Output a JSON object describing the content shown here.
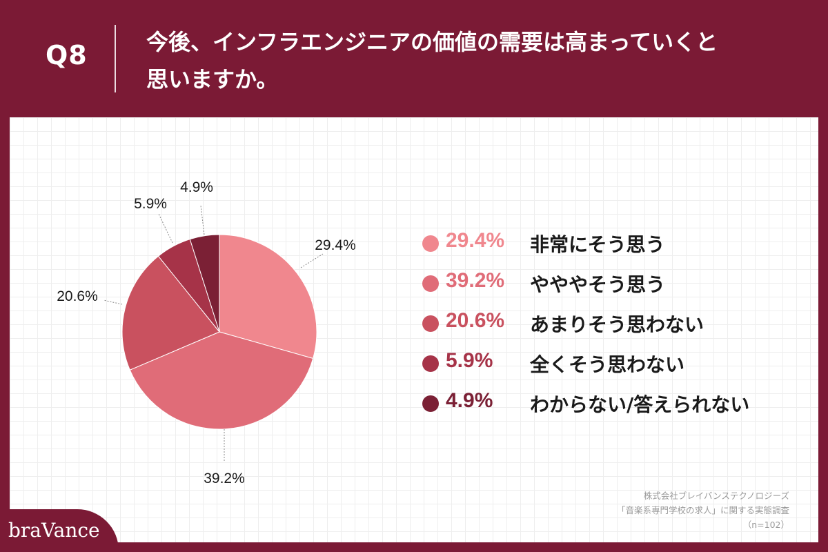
{
  "header": {
    "question_number": "Q8",
    "question_line1": "今後、インフラエンジニアの価値の需要は高まっていくと",
    "question_line2": "思いますか。"
  },
  "chart_data": {
    "type": "pie",
    "title": "",
    "categories": [
      "非常にそう思う",
      "やややそう思う",
      "あまりそう思わない",
      "全くそう思わない",
      "わからない/答えられない"
    ],
    "values": [
      29.4,
      39.2,
      20.6,
      5.9,
      4.9
    ],
    "value_labels": [
      "29.4%",
      "39.2%",
      "20.6%",
      "5.9%",
      "4.9%"
    ],
    "colors": [
      "#f0878e",
      "#e06c78",
      "#c9515f",
      "#a63348",
      "#7b2035"
    ],
    "start_angle": "12 o'clock",
    "direction": "clockwise",
    "legend_placement": "right"
  },
  "legend": {
    "items": [
      {
        "pct": "29.4%",
        "label": "非常にそう思う",
        "color": "#f0878e"
      },
      {
        "pct": "39.2%",
        "label": "やややそう思う",
        "color": "#e06c78"
      },
      {
        "pct": "20.6%",
        "label": "あまりそう思わない",
        "color": "#c9515f"
      },
      {
        "pct": "5.9%",
        "label": "全くそう思わない",
        "color": "#a63348"
      },
      {
        "pct": "4.9%",
        "label": "わからない/答えられない",
        "color": "#7b2035"
      }
    ]
  },
  "source": {
    "line1": "株式会社ブレイバンステクノロジーズ",
    "line2": "「音楽系専門学校の求人」に関する実態調査",
    "line3": "（n=102）"
  },
  "brand": {
    "logo_text": "braVance"
  }
}
